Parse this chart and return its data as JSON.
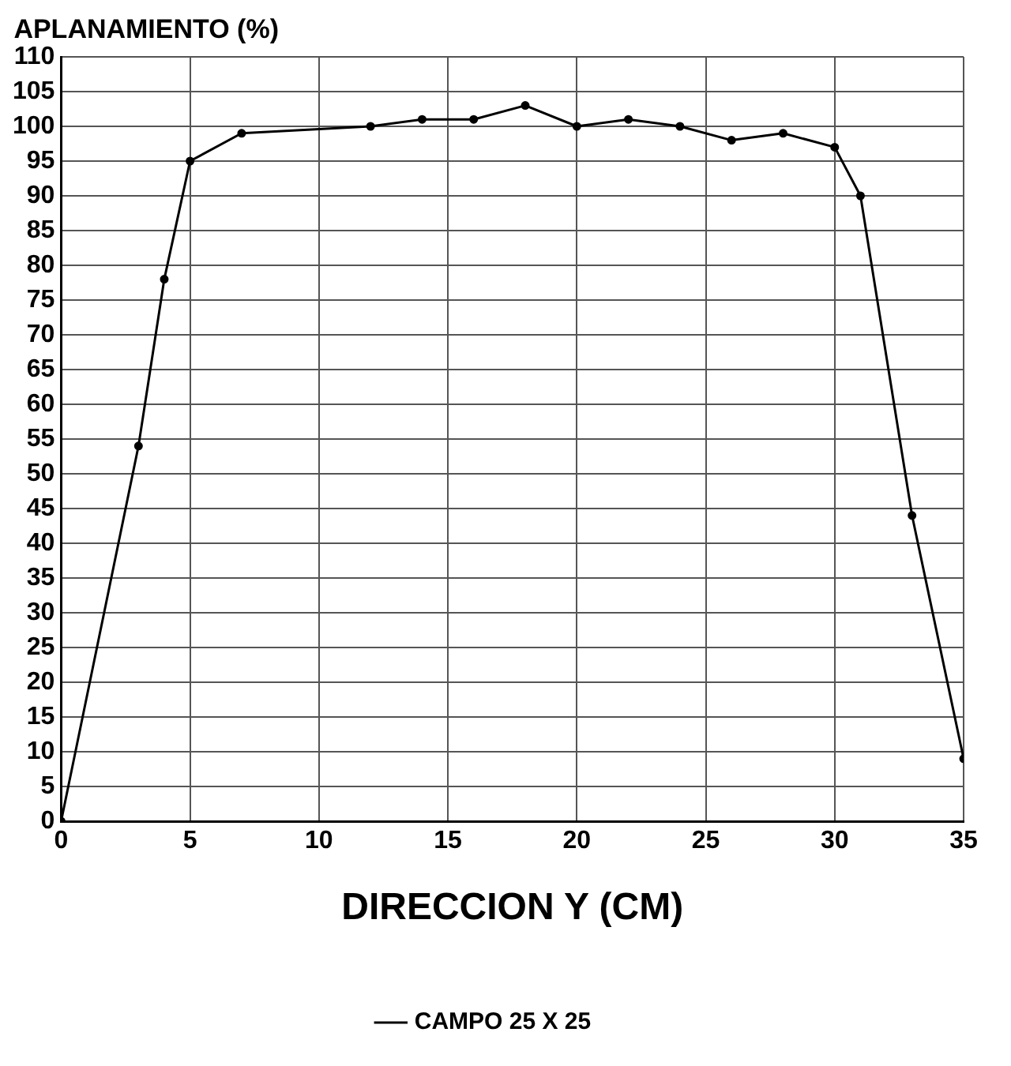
{
  "chart_data": {
    "type": "line",
    "ylabel": "APLANAMIENTO (%)",
    "xlabel": "DIRECCION Y (CM)",
    "x": [
      0,
      3,
      4,
      5,
      7,
      12,
      14,
      16,
      18,
      20,
      22,
      24,
      26,
      28,
      30,
      31,
      33,
      35
    ],
    "series": [
      {
        "name": "CAMPO 25 X 25",
        "color": "#000000",
        "values": [
          0,
          54,
          78,
          95,
          99,
          100,
          101,
          101,
          103,
          100,
          101,
          100,
          98,
          99,
          97,
          90,
          44,
          9
        ]
      }
    ],
    "xlim": [
      0,
      35
    ],
    "xticks": [
      0,
      5,
      10,
      15,
      20,
      25,
      30,
      35
    ],
    "ylim": [
      0,
      110
    ],
    "yticks": [
      0,
      5,
      10,
      15,
      20,
      25,
      30,
      35,
      40,
      45,
      50,
      55,
      60,
      65,
      70,
      75,
      80,
      85,
      90,
      95,
      100,
      105,
      110
    ],
    "grid": true,
    "legend": "bottom",
    "marker": "circle",
    "line_style": "solid"
  }
}
